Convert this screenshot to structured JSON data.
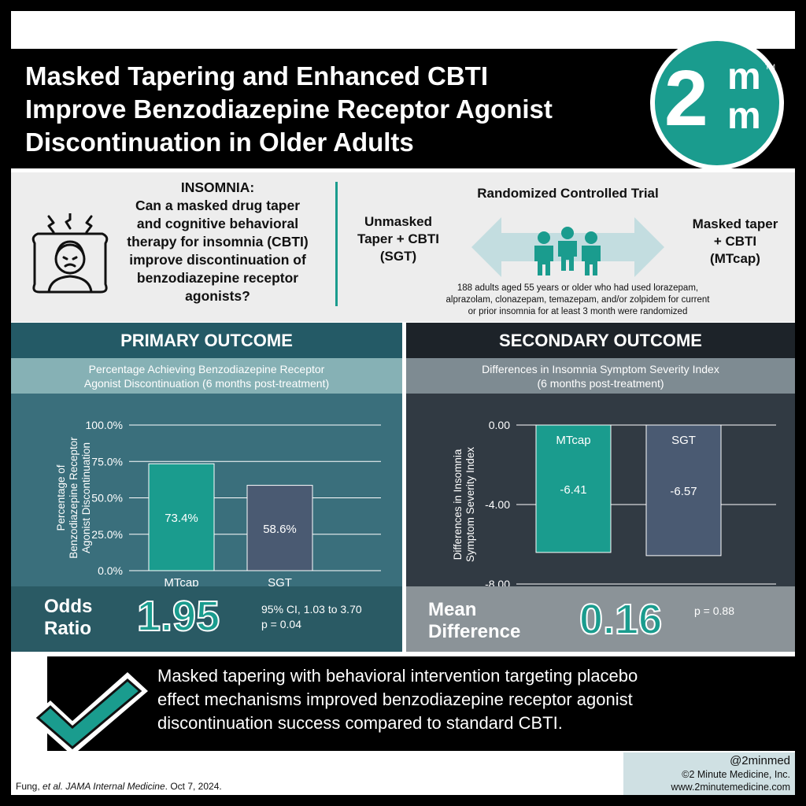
{
  "header": {
    "title_lines": [
      "Masked Tapering and Enhanced CBTI",
      "Improve Benzodiazepine Receptor Agonist",
      "Discontinuation in Older Adults"
    ],
    "logo": {
      "digit": "2",
      "m1": "m",
      "m2": "m",
      "tm": "TM"
    }
  },
  "intro": {
    "icon": "insomnia-person-icon",
    "question_lines": [
      "INSOMNIA:",
      "Can a masked drug taper",
      "and cognitive behavioral",
      "therapy for insomnia (CBTI)",
      "improve discontinuation of",
      "benzodiazepine receptor",
      "agonists?"
    ],
    "rct_title": "Randomized Controlled Trial",
    "arm_left_lines": [
      "Unmasked",
      "Taper + CBTI",
      "(SGT)"
    ],
    "arm_right_lines": [
      "Masked taper",
      "+ CBTI",
      "(MTcap)"
    ],
    "description_lines": [
      "188 adults aged 55 years or older who had used lorazepam,",
      "alprazolam, clonazepam, temazepam, and/or zolpidem for current",
      "or prior insomnia for at least 3 month were randomized"
    ]
  },
  "primary": {
    "heading": "PRIMARY OUTCOME",
    "subtitle_lines": [
      "Percentage Achieving Benzodiazepine Receptor",
      "Agonist Discontinuation (6 months post-treatment)"
    ],
    "stat_label_lines": [
      "Odds",
      "Ratio"
    ],
    "stat_value": "1.95",
    "stat_note_lines": [
      "95% CI, 1.03 to 3.70",
      "p = 0.04"
    ]
  },
  "secondary": {
    "heading": "SECONDARY OUTCOME",
    "subtitle_lines": [
      "Differences in Insomnia Symptom Severity Index",
      "(6 months post-treatment)"
    ],
    "stat_label_lines": [
      "Mean",
      "Difference"
    ],
    "stat_value": "0.16",
    "stat_note_lines": [
      "p = 0.88"
    ]
  },
  "chart_data": [
    {
      "type": "bar",
      "categories": [
        "MTcap",
        "SGT"
      ],
      "values": [
        73.4,
        58.6
      ],
      "value_labels": [
        "73.4%",
        "58.6%"
      ],
      "ylabel_lines": [
        "Percentage of",
        "Benzodiazepine Receptor",
        "Agonist Discontinuation"
      ],
      "ylim": [
        0,
        100
      ],
      "yticks": [
        0,
        25,
        50,
        75,
        100
      ],
      "ytick_labels": [
        "0.0%",
        "25.0%",
        "50.0%",
        "75.0%",
        "100.0%"
      ],
      "grid": true,
      "colors": [
        "#1a9c8e",
        "#4a5a72"
      ]
    },
    {
      "type": "bar",
      "categories": [
        "MTcap",
        "SGT"
      ],
      "values": [
        -6.41,
        -6.57
      ],
      "value_labels": [
        "-6.41",
        "-6.57"
      ],
      "ylabel_lines": [
        "Differences in Insomnia",
        "Symptom Severity Index"
      ],
      "ylim": [
        -8,
        0
      ],
      "yticks": [
        0,
        -4,
        -8
      ],
      "ytick_labels": [
        "0.00",
        "-4.00",
        "-8.00"
      ],
      "grid": true,
      "category_labels_position": "top-inside",
      "colors": [
        "#1a9c8e",
        "#4a5a72"
      ]
    }
  ],
  "conclusion": {
    "icon": "checkmark-icon",
    "text_lines": [
      "Masked tapering with behavioral intervention targeting placebo",
      "effect mechanisms improved benzodiazepine receptor agonist",
      "discontinuation success compared to standard CBTI."
    ]
  },
  "footer": {
    "citation_prefix": "Fung, ",
    "citation_italic": "et al. JAMA Internal Medicine",
    "citation_suffix": ". Oct 7, 2024.",
    "handle": "@2minmed",
    "copyright": "©2 Minute Medicine, Inc.",
    "website": "www.2minutemedicine.com"
  }
}
